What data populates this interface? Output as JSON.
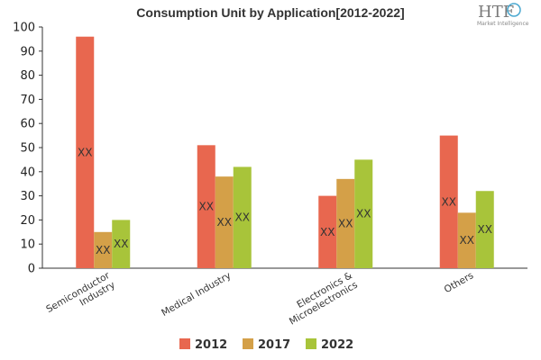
{
  "chart_data": {
    "type": "bar",
    "title": "Consumption Unit by  Application[2012-2022]",
    "categories": [
      "Semiconductor Industry",
      "Medical Industry",
      "Electronics & Microelectronics",
      "Others"
    ],
    "series": [
      {
        "name": "2012",
        "color": "#e8674f",
        "values": [
          96,
          51,
          30,
          55
        ]
      },
      {
        "name": "2017",
        "color": "#d4a048",
        "values": [
          15,
          38,
          37,
          23
        ]
      },
      {
        "name": "2022",
        "color": "#a8c43a",
        "values": [
          20,
          42,
          45,
          32
        ]
      }
    ],
    "data_label": "XX",
    "ylim": [
      0,
      100
    ],
    "yticks": [
      0,
      10,
      20,
      30,
      40,
      50,
      60,
      70,
      80,
      90,
      100
    ],
    "grid": false,
    "legend_position": "bottom"
  },
  "branding": {
    "logo_text": "HTF",
    "logo_subtext": "Market Intelligence"
  }
}
